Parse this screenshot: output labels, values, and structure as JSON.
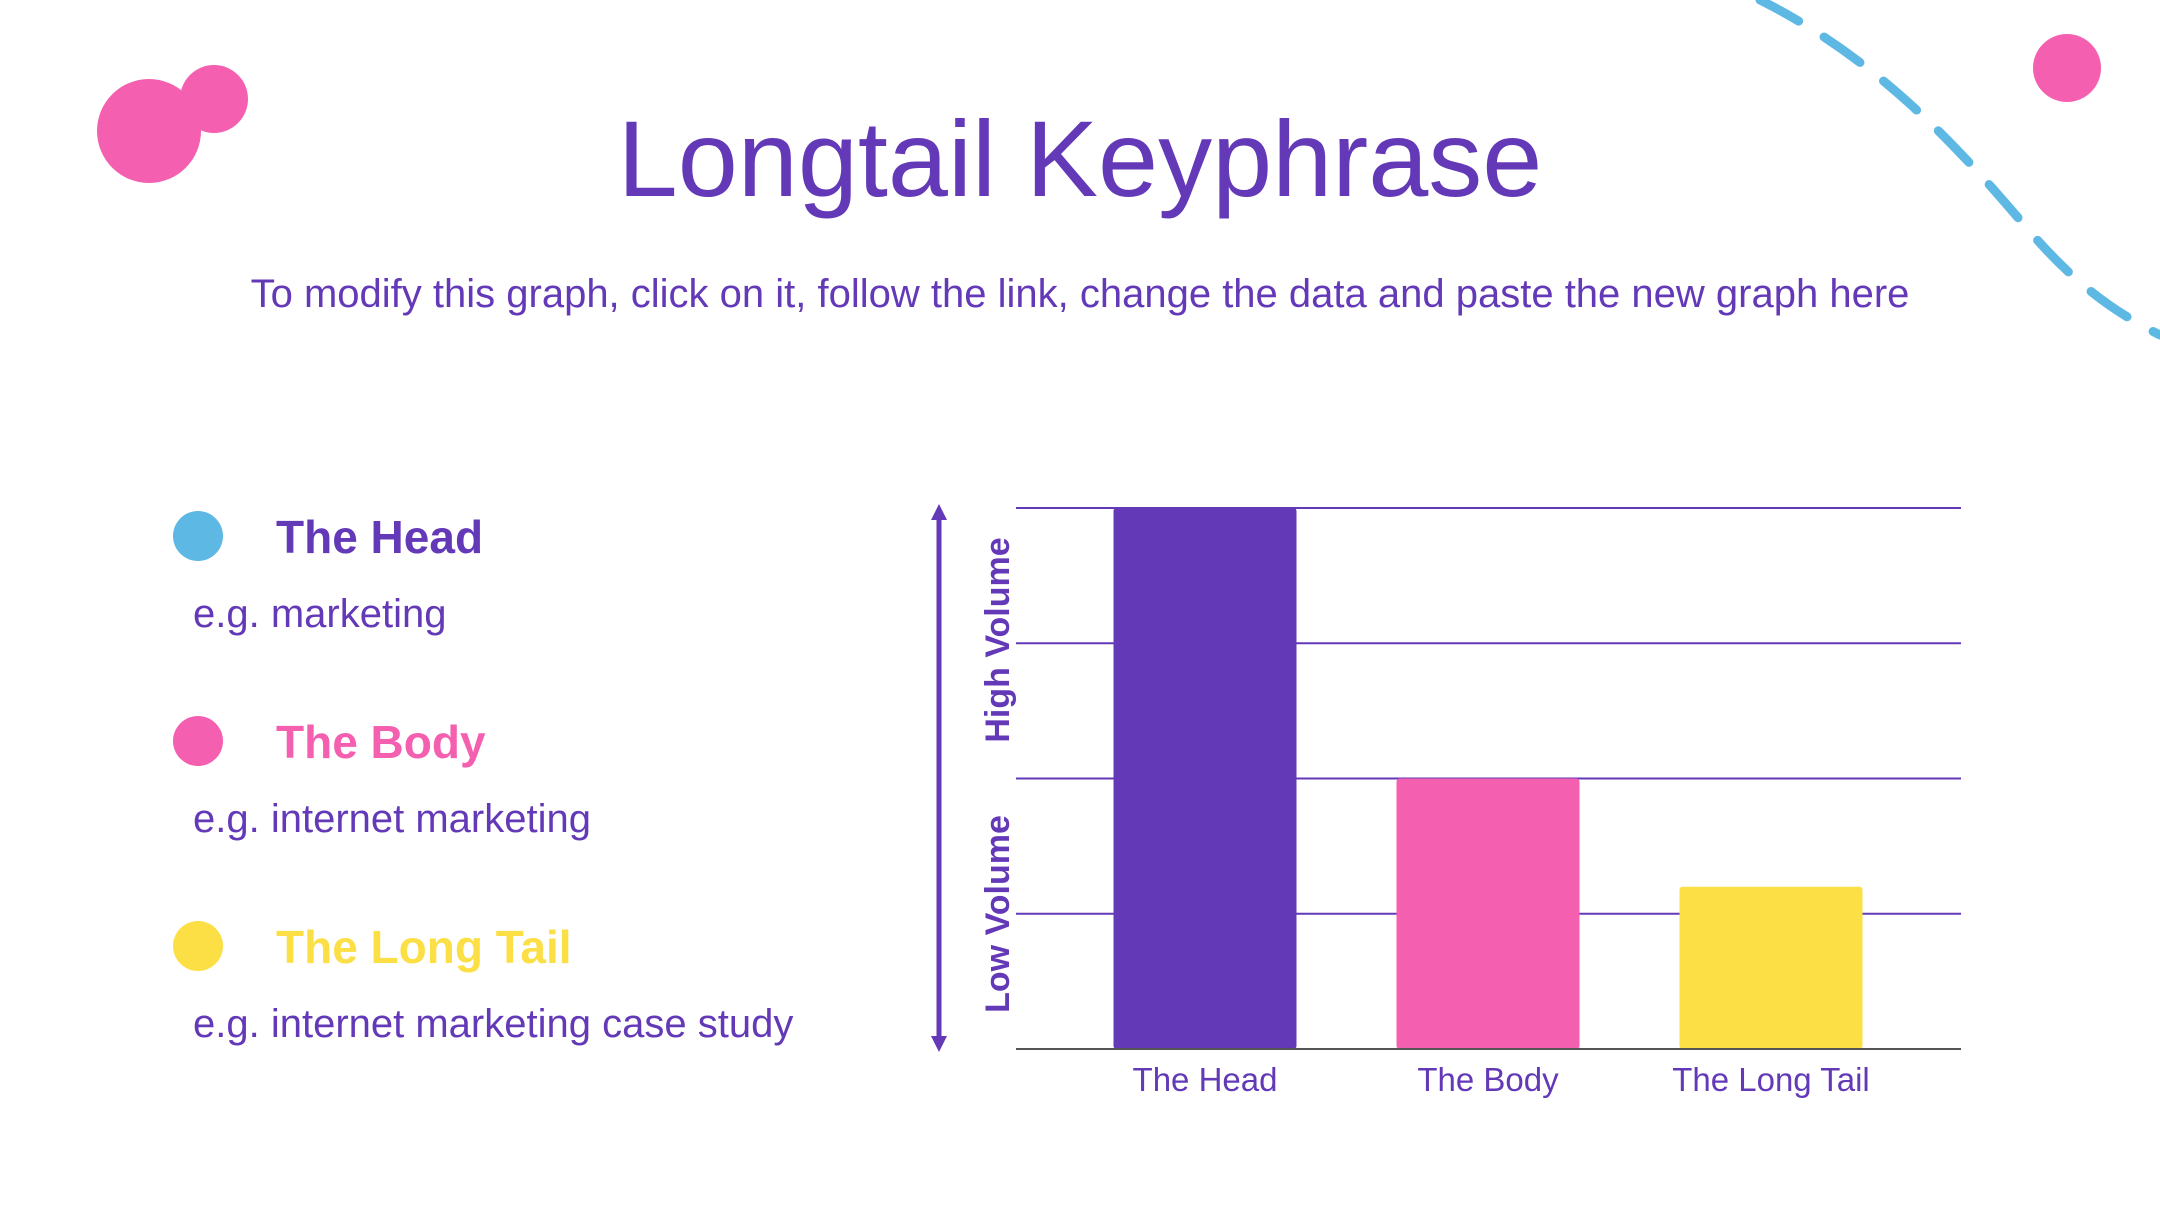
{
  "title": "Longtail Keyphrase",
  "subtitle": "To modify this graph, click on it, follow the link, change the data and paste the new graph here",
  "legend": [
    {
      "label": "The Head",
      "example": "e.g. marketing",
      "color": "#5eb8e4",
      "text_color": "#6339b8"
    },
    {
      "label": "The Body",
      "example": "e.g. internet marketing",
      "color": "#f55fb0",
      "text_color": "#f55fb0"
    },
    {
      "label": "The Long Tail",
      "example": "e.g. internet marketing case study",
      "color": "#fbdf45",
      "text_color": "#fbdf45"
    }
  ],
  "colors": {
    "accent": "#6339b8",
    "pink": "#f55fb0",
    "blue": "#5eb8e4",
    "yellow": "#fbdf45"
  },
  "chart_data": {
    "type": "bar",
    "categories": [
      "The Head",
      "The Body",
      "The Long Tail"
    ],
    "values": [
      4,
      2,
      1.2
    ],
    "colors": [
      "#6339b8",
      "#f55fb0",
      "#fbdf45"
    ],
    "ylim": [
      0,
      4
    ],
    "grid": true,
    "ytick_labels": false,
    "axis_annotations": {
      "low": "Low Volume",
      "high": "High Volume"
    }
  }
}
